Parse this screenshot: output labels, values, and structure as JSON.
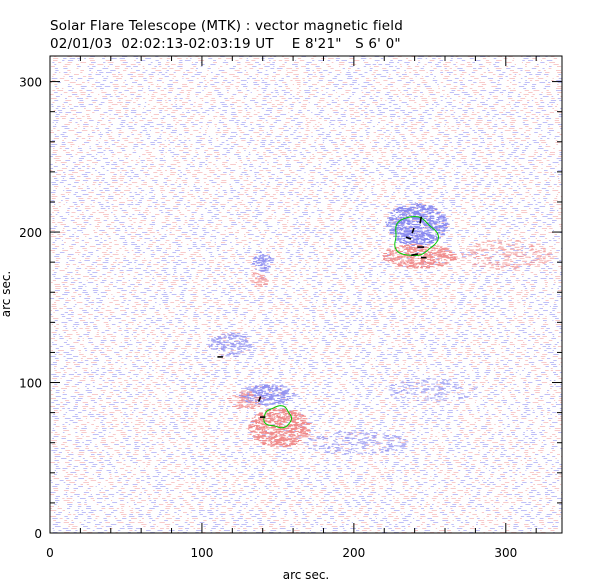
{
  "header": {
    "title_line1": "Solar Flare Telescope (MTK) : vector magnetic field",
    "date": "02/01/03",
    "time_range": "02:02:13-02:03:19 UT",
    "position": "E 8'21\"   S 6' 0\""
  },
  "colors": {
    "positive_field": "#f08a8a",
    "negative_field": "#8a8af0",
    "contour": "#00cc00",
    "vectors": "#000000"
  },
  "chart_data": {
    "type": "heatmap",
    "title": "Solar Flare Telescope (MTK) : vector magnetic field",
    "xlabel": "arc sec.",
    "ylabel": "arc sec.",
    "xlim": [
      0,
      337
    ],
    "ylim": [
      0,
      317
    ],
    "xticks": [
      0,
      100,
      200,
      300
    ],
    "yticks": [
      0,
      100,
      200,
      300
    ],
    "x_minor_step": 20,
    "y_minor_step": 20,
    "regions": [
      {
        "name": "active-region-upper-negative",
        "polarity": "negative",
        "x": 240,
        "y": 205,
        "rx": 20,
        "ry": 14,
        "strength": 1.0
      },
      {
        "name": "active-region-upper-positive",
        "polarity": "positive",
        "x": 242,
        "y": 184,
        "rx": 24,
        "ry": 8,
        "strength": 0.9
      },
      {
        "name": "small-negative-patch",
        "polarity": "negative",
        "x": 139,
        "y": 180,
        "rx": 6,
        "ry": 7,
        "strength": 0.8
      },
      {
        "name": "small-positive-patch",
        "polarity": "positive",
        "x": 136,
        "y": 168,
        "rx": 6,
        "ry": 5,
        "strength": 0.55
      },
      {
        "name": "negative-filament",
        "polarity": "negative",
        "x": 118,
        "y": 125,
        "rx": 14,
        "ry": 8,
        "strength": 0.55
      },
      {
        "name": "active-region-lower-negative",
        "polarity": "negative",
        "x": 142,
        "y": 92,
        "rx": 18,
        "ry": 7,
        "strength": 0.8
      },
      {
        "name": "active-region-lower-positive",
        "polarity": "positive",
        "x": 150,
        "y": 70,
        "rx": 20,
        "ry": 13,
        "strength": 1.0
      },
      {
        "name": "positive-extension",
        "polarity": "positive",
        "x": 128,
        "y": 88,
        "rx": 12,
        "ry": 6,
        "strength": 0.5
      },
      {
        "name": "diffuse-positive-east",
        "polarity": "positive",
        "x": 300,
        "y": 185,
        "rx": 30,
        "ry": 10,
        "strength": 0.3
      },
      {
        "name": "diffuse-negative-south",
        "polarity": "negative",
        "x": 200,
        "y": 60,
        "rx": 35,
        "ry": 8,
        "strength": 0.3
      },
      {
        "name": "diffuse-negative-mid",
        "polarity": "negative",
        "x": 250,
        "y": 95,
        "rx": 30,
        "ry": 8,
        "strength": 0.25
      }
    ],
    "contours": [
      {
        "name": "contour-upper",
        "x": 240,
        "y": 197,
        "rx": 14,
        "ry": 13
      },
      {
        "name": "contour-lower",
        "x": 150,
        "y": 77,
        "rx": 9,
        "ry": 7
      }
    ],
    "vectors": [
      {
        "x": 112,
        "y": 117,
        "angle": 0,
        "length": 4
      },
      {
        "x": 138,
        "y": 89,
        "angle": 70,
        "length": 4
      },
      {
        "x": 140,
        "y": 77,
        "angle": 0,
        "length": 4
      },
      {
        "x": 244,
        "y": 208,
        "angle": 80,
        "length": 5
      },
      {
        "x": 239,
        "y": 201,
        "angle": 70,
        "length": 4
      },
      {
        "x": 236,
        "y": 196,
        "angle": -20,
        "length": 4
      },
      {
        "x": 244,
        "y": 190,
        "angle": 0,
        "length": 5
      },
      {
        "x": 240,
        "y": 185,
        "angle": 10,
        "length": 5
      },
      {
        "x": 246,
        "y": 183,
        "angle": 0,
        "length": 4
      }
    ]
  }
}
